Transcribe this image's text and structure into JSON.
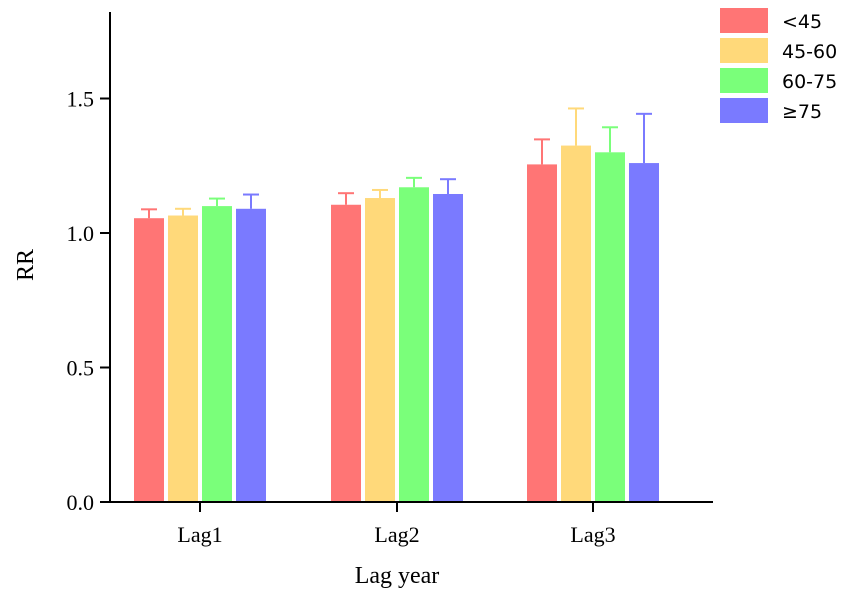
{
  "chart_data": {
    "type": "bar",
    "xlabel": "Lag year",
    "ylabel": "RR",
    "categories": [
      "Lag1",
      "Lag2",
      "Lag3"
    ],
    "ylim": [
      0,
      1.8
    ],
    "yticks": [
      "0.0",
      "0.5",
      "1.0",
      "1.5"
    ],
    "ytick_values": [
      0,
      0.5,
      1.0,
      1.5
    ],
    "legend_position": "top-right",
    "grid": false,
    "series": [
      {
        "name": "<45",
        "color": "#ff7575",
        "values": [
          1.055,
          1.105,
          1.255
        ],
        "error_upper": [
          1.088,
          1.148,
          1.348
        ]
      },
      {
        "name": "45-60",
        "color": "#ffd97a",
        "values": [
          1.065,
          1.13,
          1.325
        ],
        "error_upper": [
          1.09,
          1.16,
          1.463
        ]
      },
      {
        "name": "60-75",
        "color": "#7aff7a",
        "values": [
          1.1,
          1.17,
          1.3
        ],
        "error_upper": [
          1.128,
          1.205,
          1.393
        ]
      },
      {
        "name": "≥75",
        "color": "#7a7aff",
        "values": [
          1.09,
          1.145,
          1.26
        ],
        "error_upper": [
          1.143,
          1.2,
          1.443
        ]
      }
    ]
  }
}
